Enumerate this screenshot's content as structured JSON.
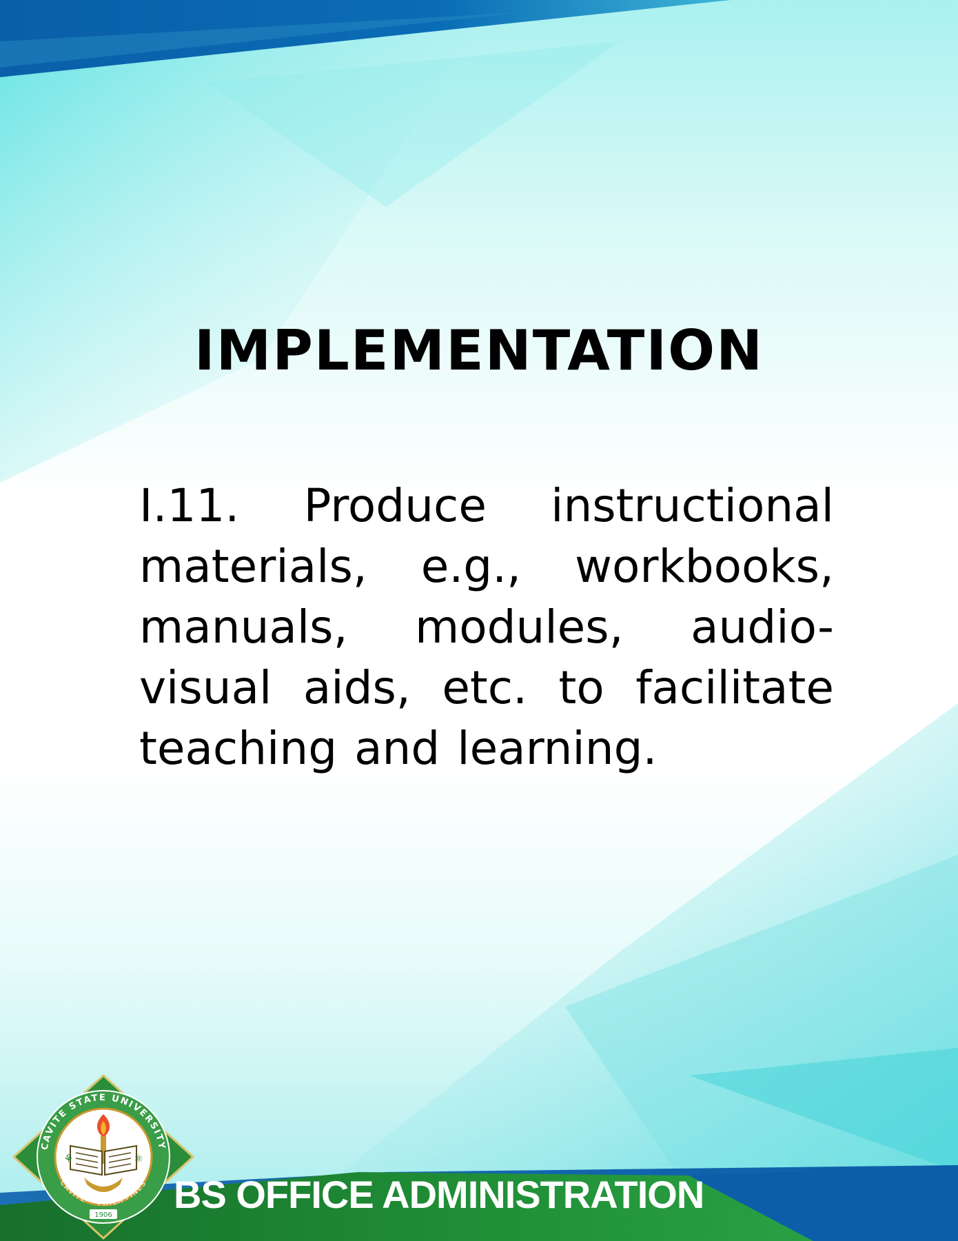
{
  "document": {
    "heading": "IMPLEMENTATION",
    "body": "I.11. Produce instructional materials, e.g., workbooks, manuals, modules, audio-visual aids, etc. to facilitate teaching and learning."
  },
  "footer": {
    "program_title": "BS OFFICE ADMINISTRATION"
  },
  "seal": {
    "name": "Cavite State University",
    "ring_top": "CAVITE STATE UNIVERSITY",
    "ring_bottom": "CAVITE • PHILIPPINES",
    "year": "1906"
  },
  "colors": {
    "top_band": "#0a68b0",
    "bottom_band": "#1d8a34",
    "seal_green": "#2a8d3a",
    "seal_gold": "#c99a2e",
    "aqua": "#3fd6dc"
  }
}
